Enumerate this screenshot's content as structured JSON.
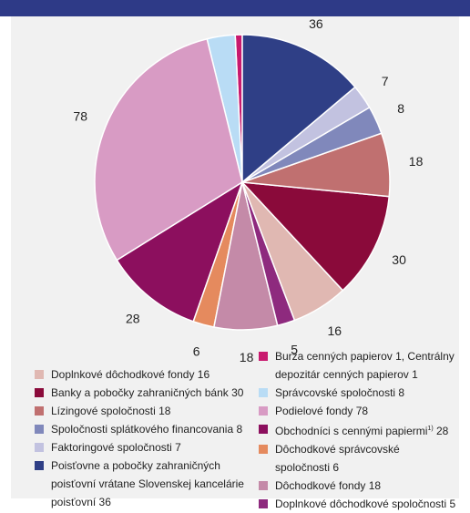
{
  "chart_data": {
    "type": "pie",
    "title": "",
    "slices": [
      {
        "legend_html": "Burza cenných papierov 1, Centrálny depozitár cenných papierov 1",
        "value": 2,
        "color": "#c8196e"
      },
      {
        "legend_html": "Správcovské spoločnosti 8",
        "value": 8,
        "color": "#b9dcf5"
      },
      {
        "legend_html": "Podielové fondy 78",
        "value": 78,
        "color": "#d89bc4"
      },
      {
        "legend_html": "Obchodníci s cennými papiermi<sup>1)</sup> 28",
        "value": 28,
        "color": "#8c0f5e"
      },
      {
        "legend_html": "Dôchodkové správcovské spoločnosti 6",
        "value": 6,
        "color": "#e58a5e"
      },
      {
        "legend_html": "Dôchodkové fondy 18",
        "value": 18,
        "color": "#c48aa8"
      },
      {
        "legend_html": "Doplnkové dôchodkové spoločnosti 5",
        "value": 5,
        "color": "#8e2a7e"
      },
      {
        "legend_html": "Doplnkové dôchodkové fondy 16",
        "value": 16,
        "color": "#e0b8b2"
      },
      {
        "legend_html": "Banky a pobočky zahraničných bánk 30",
        "value": 30,
        "color": "#8a0a3a"
      },
      {
        "legend_html": "Lízingové spoločnosti 18",
        "value": 18,
        "color": "#c07070"
      },
      {
        "legend_html": "Spoločnosti splátkového financovania 8",
        "value": 8,
        "color": "#8088bb"
      },
      {
        "legend_html": "Faktoringové spoločnosti 7",
        "value": 7,
        "color": "#c2c2e0"
      },
      {
        "legend_html": "Poisťovne a pobočky zahraničných poisťovní vrátane Slovenskej kancelárie poisťovní 36",
        "value": 36,
        "color": "#2f3f86"
      }
    ],
    "labels": [
      "2",
      "8",
      "78",
      "28",
      "6",
      "18",
      "5",
      "16",
      "30",
      "18",
      "8",
      "7",
      "36"
    ],
    "legend_left_order": [
      7,
      8,
      9,
      10,
      11,
      12
    ],
    "legend_right_order": [
      0,
      1,
      2,
      3,
      4,
      5,
      6
    ]
  }
}
